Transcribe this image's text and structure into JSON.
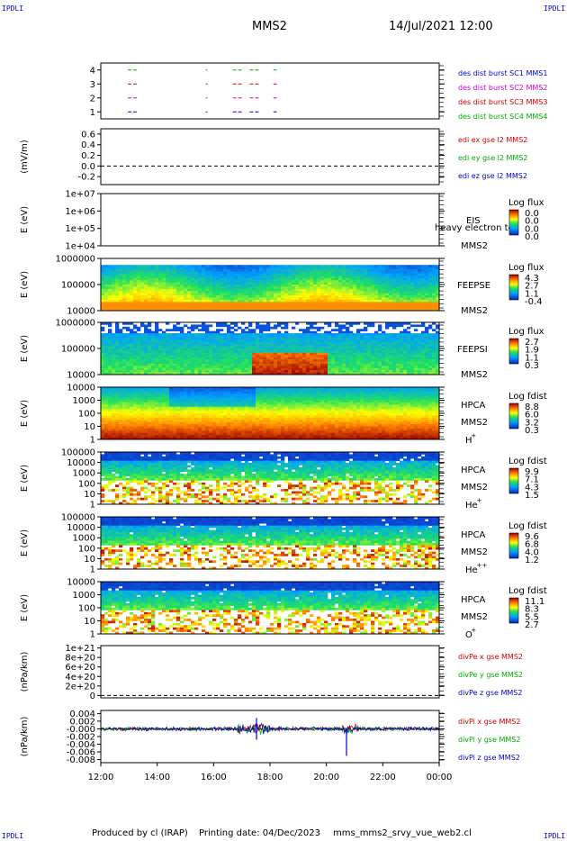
{
  "header": {
    "corner_label": "IPDLI",
    "spacecraft": "MMS2",
    "datetime": "14/Jul/2021 12:00"
  },
  "footer": {
    "produced_by": "Produced by cl (IRAP)",
    "printing_date": "Printing date: 04/Dec/2023",
    "filename": "mms_mms2_srvy_vue_web2.cl"
  },
  "time_axis": {
    "ticks": [
      "12:00",
      "14:00",
      "16:00",
      "18:00",
      "20:00",
      "22:00",
      "00:00"
    ]
  },
  "colors": {
    "mms1": "#0000cc",
    "mms2": "#cc00cc",
    "mms3": "#cc0000",
    "mms4": "#00aa00",
    "x": "#cc0000",
    "y": "#00aa00",
    "z": "#0000cc"
  },
  "chart_data": [
    {
      "type": "line",
      "name": "burst",
      "y_ticks": [
        "4",
        "3",
        "2",
        "1"
      ],
      "ylim": [
        0.5,
        4.5
      ],
      "legend": [
        "des dist burst SC1 MMS1",
        "des dist burst SC2 MMS2",
        "des dist burst SC3 MMS3",
        "des dist burst SC4 MMS4"
      ]
    },
    {
      "type": "line",
      "name": "edi",
      "ylabel": "(mV/m)",
      "y_ticks": [
        "0.6",
        "0.4",
        "0.2",
        "0.0",
        "-0.2"
      ],
      "ylim": [
        -0.35,
        0.7
      ],
      "legend": [
        "edi ex gse l2 MMS2",
        "edi ey gse l2 MMS2",
        "edi ez gse l2 MMS2"
      ]
    },
    {
      "type": "heatmap",
      "name": "eis",
      "ylabel": "E (eV)",
      "y_ticks": [
        "1e+07",
        "1e+06",
        "1e+05",
        "1e+04"
      ],
      "side_labels": [
        "EIS",
        "heavy electron to",
        "MMS2"
      ],
      "colorbar": {
        "title": "Log flux",
        "ticks": [
          "0.0",
          "0.0",
          "0.0",
          "0.0"
        ]
      }
    },
    {
      "type": "heatmap",
      "name": "feepse",
      "ylabel": "E (eV)",
      "y_ticks": [
        "1000000",
        "100000",
        "10000"
      ],
      "side_labels": [
        "FEEPSE",
        "MMS2"
      ],
      "colorbar": {
        "title": "Log flux",
        "ticks": [
          "4.3",
          "2.7",
          "1.1",
          "-0.4"
        ]
      }
    },
    {
      "type": "heatmap",
      "name": "feepsi",
      "ylabel": "E (eV)",
      "y_ticks": [
        "1000000",
        "100000",
        "10000"
      ],
      "side_labels": [
        "FEEPSI",
        "MMS2"
      ],
      "colorbar": {
        "title": "Log flux",
        "ticks": [
          "2.7",
          "1.9",
          "1.1",
          "0.3"
        ]
      }
    },
    {
      "type": "heatmap",
      "name": "hpca-h",
      "ylabel": "E (eV)",
      "y_ticks": [
        "10000",
        "1000",
        "100",
        "10",
        "1"
      ],
      "side_labels": [
        "HPCA",
        "MMS2",
        "H",
        "+"
      ],
      "colorbar": {
        "title": "Log fdist",
        "ticks": [
          "8.8",
          "6.0",
          "3.2",
          "0.3"
        ]
      }
    },
    {
      "type": "heatmap",
      "name": "hpca-he",
      "ylabel": "E (eV)",
      "y_ticks": [
        "100000",
        "10000",
        "1000",
        "100",
        "10",
        "1"
      ],
      "side_labels": [
        "HPCA",
        "MMS2",
        "He",
        "+"
      ],
      "colorbar": {
        "title": "Log fdist",
        "ticks": [
          "9.9",
          "7.1",
          "4.3",
          "1.5"
        ]
      }
    },
    {
      "type": "heatmap",
      "name": "hpca-hepp",
      "ylabel": "E (eV)",
      "y_ticks": [
        "100000",
        "10000",
        "1000",
        "100",
        "10",
        "1"
      ],
      "side_labels": [
        "HPCA",
        "MMS2",
        "He",
        "++"
      ],
      "colorbar": {
        "title": "Log fdist",
        "ticks": [
          "9.6",
          "6.8",
          "4.0",
          "1.2"
        ]
      }
    },
    {
      "type": "heatmap",
      "name": "hpca-o",
      "ylabel": "E (eV)",
      "y_ticks": [
        "10000",
        "1000",
        "100",
        "10",
        "1"
      ],
      "side_labels": [
        "HPCA",
        "MMS2",
        "O",
        "+"
      ],
      "colorbar": {
        "title": "Log fdist",
        "ticks": [
          "11.1",
          "8.3",
          "5.5",
          "2.7"
        ]
      }
    },
    {
      "type": "line",
      "name": "divpe",
      "ylabel": "(nPa/km)",
      "y_ticks": [
        "1e+21",
        "8e+20",
        "6e+20",
        "4e+20",
        "2e+20",
        "0"
      ],
      "ylim": [
        -5e+19,
        1.05e+21
      ],
      "legend": [
        "divPe x gse MMS2",
        "divPe y gse MMS2",
        "divPe z gse MMS2"
      ]
    },
    {
      "type": "line",
      "name": "divpi",
      "ylabel": "(nPa/km)",
      "y_ticks": [
        "0.004",
        "0.002",
        "-0.000",
        "-0.002",
        "-0.004",
        "-0.006",
        "-0.008"
      ],
      "ylim": [
        -0.0088,
        0.0048
      ],
      "legend": [
        "divPi x gse MMS2",
        "divPi y gse MMS2",
        "divPi z gse MMS2"
      ]
    }
  ]
}
